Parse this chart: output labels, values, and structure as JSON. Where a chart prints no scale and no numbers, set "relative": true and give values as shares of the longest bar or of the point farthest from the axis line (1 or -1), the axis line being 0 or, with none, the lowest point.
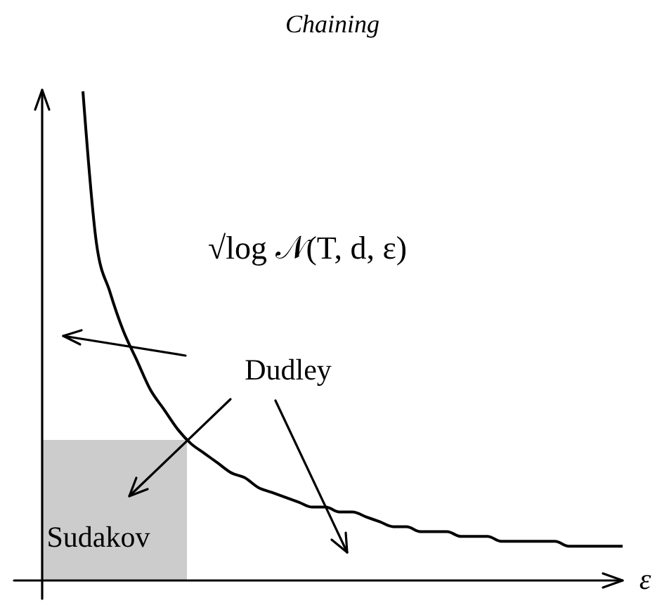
{
  "chart_data": {
    "type": "line",
    "relative": true,
    "title": "Chaining",
    "xlabel": "ε",
    "categories": [
      null,
      null,
      null,
      null,
      null,
      null,
      null,
      null,
      null,
      null,
      null,
      null,
      null,
      null,
      null,
      null,
      null,
      null,
      null,
      null,
      null,
      null,
      null,
      null,
      null,
      null,
      null,
      null,
      null,
      null,
      null,
      null,
      null,
      null,
      null,
      null,
      null,
      null,
      null,
      null,
      null
    ],
    "series": [
      {
        "name": "√log 𝒩(T, d, ε)",
        "color": "#000000",
        "values": [
          1,
          0.69,
          0.59,
          0.51,
          0.45,
          0.39,
          0.35,
          0.31,
          0.28,
          0.26,
          0.24,
          0.22,
          0.21,
          0.19,
          0.18,
          0.17,
          0.16,
          0.15,
          0.15,
          0.14,
          0.14,
          0.13,
          0.12,
          0.11,
          0.11,
          0.1,
          0.1,
          0.1,
          0.09,
          0.09,
          0.09,
          0.08,
          0.08,
          0.08,
          0.08,
          0.08,
          0.07,
          0.07,
          0.07,
          0.07,
          0.07
        ]
      }
    ],
    "annotations": [
      "Dudley",
      "Sudakov"
    ]
  }
}
